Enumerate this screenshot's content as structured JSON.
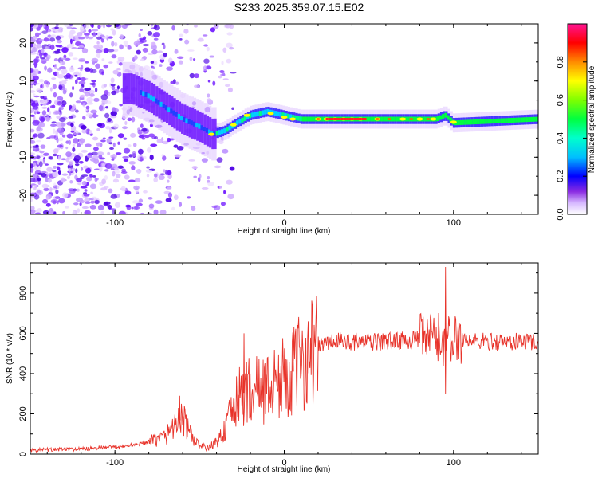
{
  "title": "S233.2025.359.07.15.E02",
  "colors": {
    "snr_line": "#e8332a",
    "colormap": [
      "#ffffff",
      "#e6c8ff",
      "#b08cff",
      "#8a2be2",
      "#5a00ff",
      "#0000ff",
      "#00bfff",
      "#00ff80",
      "#7fff00",
      "#ffff00",
      "#ff8c00",
      "#ff0000",
      "#ff1493"
    ]
  },
  "chart_data": [
    {
      "id": "spectrogram",
      "type": "heatmap",
      "xlabel": "Height of straight line (km)",
      "ylabel": "Frequency (Hz)",
      "xlim": [
        -150,
        150
      ],
      "ylim": [
        -25,
        25
      ],
      "xticks": [
        -100,
        0,
        100
      ],
      "yticks": [
        -20,
        -10,
        0,
        10,
        20
      ],
      "colorbar": {
        "label": "Normalized spectral amplitude",
        "range": [
          0,
          1
        ],
        "ticks": [
          "0.0",
          "0.2",
          "0.4",
          "0.6",
          "0.8"
        ]
      },
      "ridge": {
        "description_points_x_km": [
          -90,
          -80,
          -70,
          -60,
          -50,
          -42,
          -35,
          -28,
          -20,
          -10,
          0,
          10,
          20,
          40,
          60,
          80,
          90,
          95,
          100,
          150
        ],
        "freq_hz": [
          8,
          6,
          3,
          0,
          -2,
          -4,
          -3,
          -1,
          1,
          2,
          1,
          0,
          0,
          0,
          0,
          0,
          0,
          1,
          -1,
          0
        ]
      }
    },
    {
      "id": "snr",
      "type": "line",
      "xlabel": "Height of straight line (km)",
      "ylabel": "SNR (10 * v/v)",
      "xlim": [
        -150,
        150
      ],
      "ylim": [
        0,
        950
      ],
      "xticks": [
        -100,
        0,
        100
      ],
      "yticks": [
        0,
        200,
        400,
        600,
        800
      ],
      "envelope_x": [
        -150,
        -120,
        -100,
        -90,
        -80,
        -70,
        -65,
        -60,
        -55,
        -50,
        -45,
        -40,
        -35,
        -30,
        -25,
        -20,
        -15,
        -10,
        -5,
        0,
        5,
        10,
        15,
        20,
        30,
        40,
        50,
        60,
        70,
        80,
        85,
        90,
        95,
        100,
        105,
        110,
        120,
        130,
        140,
        150
      ],
      "envelope_y": [
        20,
        25,
        35,
        45,
        60,
        90,
        150,
        180,
        90,
        40,
        30,
        60,
        120,
        230,
        300,
        320,
        320,
        330,
        350,
        380,
        410,
        460,
        500,
        540,
        560,
        560,
        555,
        560,
        565,
        570,
        575,
        580,
        560,
        570,
        575,
        560,
        560,
        555,
        560,
        560
      ],
      "spikes": [
        {
          "x": 95,
          "y": 930
        },
        {
          "x": 95,
          "y": 300
        },
        {
          "x": -62,
          "y": 290
        },
        {
          "x": -24,
          "y": 600
        },
        {
          "x": 5,
          "y": 520
        }
      ]
    }
  ]
}
